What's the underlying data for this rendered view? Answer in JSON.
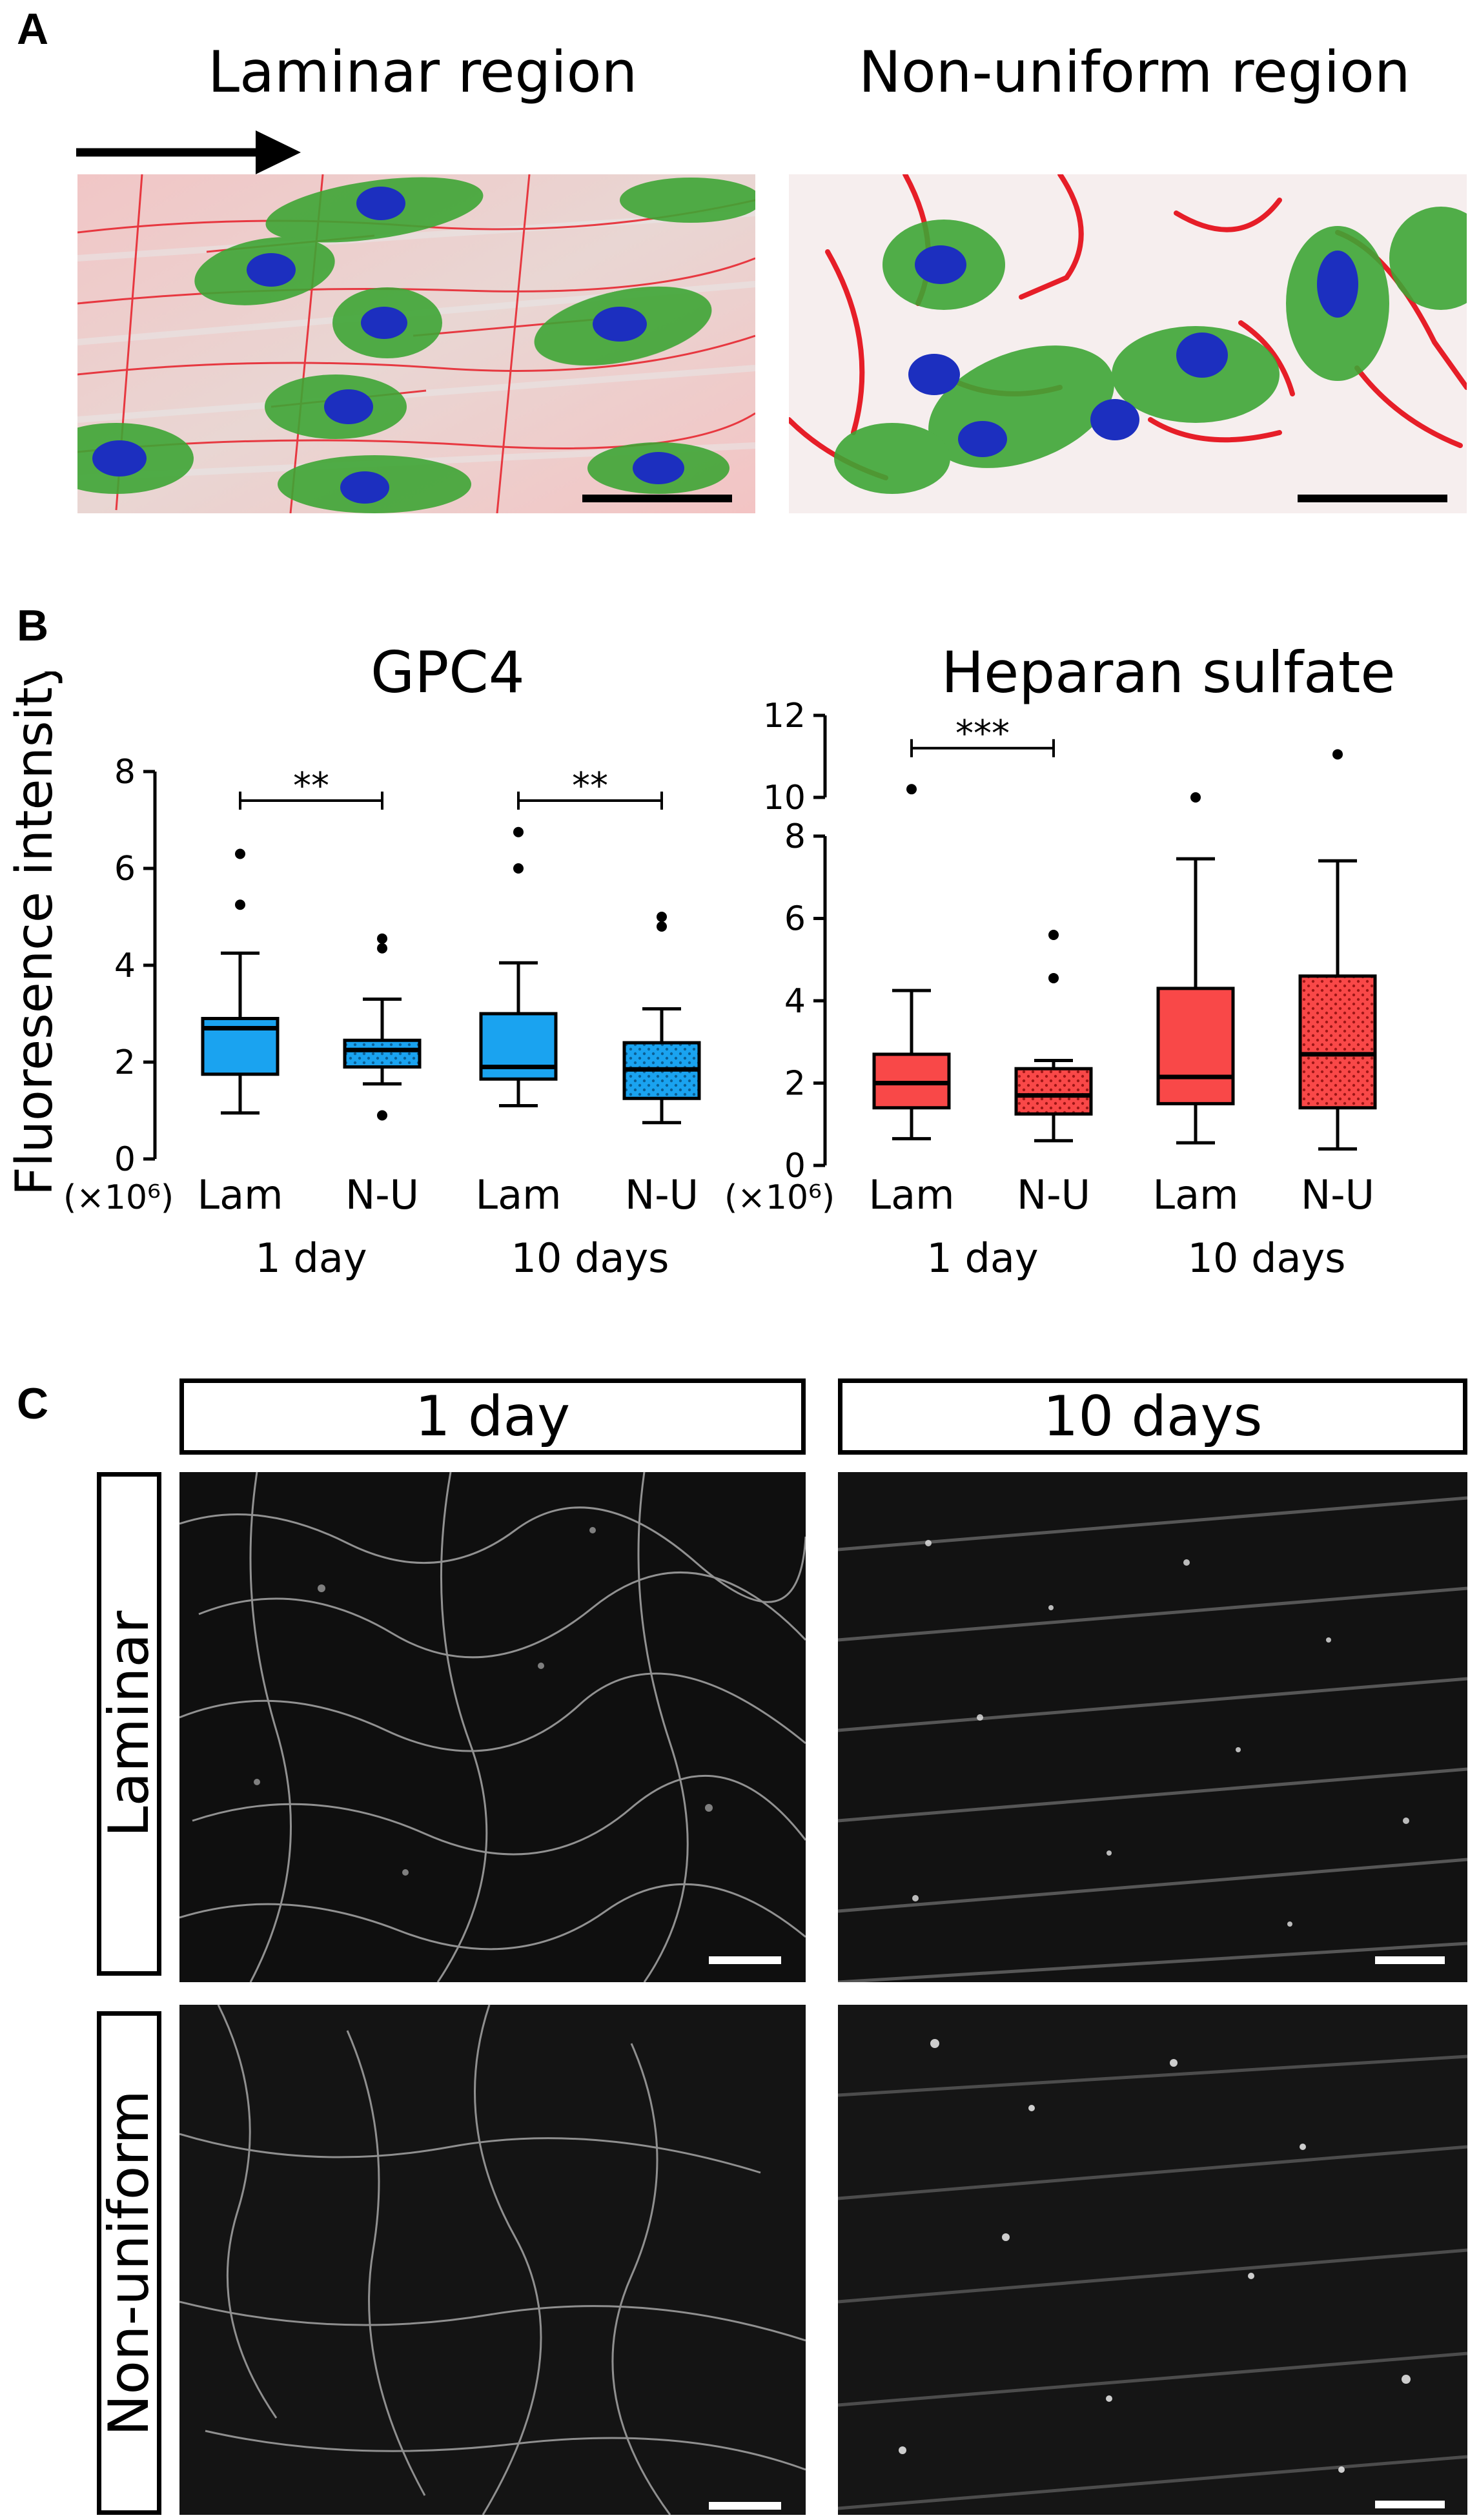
{
  "panels": {
    "a": "A",
    "b": "B",
    "c": "C"
  },
  "panel_a": {
    "left_title": "Laminar region",
    "right_title": "Non-uniform region"
  },
  "panel_b": {
    "ylabel": "Fluoresence intensity",
    "multiplier": "(×10⁶)"
  },
  "panel_c": {
    "col_1": "1 day",
    "col_2": "10 days",
    "row_1": "Laminar",
    "row_2": "Non-uniform"
  },
  "chart_data": [
    {
      "type": "box",
      "title": "GPC4",
      "ylabel": "Fluoresence intensity",
      "y_multiplier": "(×10⁶)",
      "ylim": [
        0,
        8
      ],
      "yticks": [
        0,
        2,
        4,
        6,
        8
      ],
      "color": "#1aa3f0",
      "categories": [
        "Lam",
        "N-U",
        "Lam",
        "N-U"
      ],
      "groups": [
        {
          "label": "1 day",
          "members": [
            0,
            1
          ]
        },
        {
          "label": "10 days",
          "members": [
            2,
            3
          ]
        }
      ],
      "boxes": [
        {
          "q1": 1.75,
          "median": 2.7,
          "q3": 2.9,
          "whisker_low": 0.95,
          "whisker_high": 4.25,
          "outliers": [
            5.25,
            6.3
          ],
          "pattern": false
        },
        {
          "q1": 1.9,
          "median": 2.25,
          "q3": 2.45,
          "whisker_low": 1.55,
          "whisker_high": 3.3,
          "outliers": [
            0.9,
            4.35,
            4.55
          ],
          "pattern": true
        },
        {
          "q1": 1.65,
          "median": 1.9,
          "q3": 3.0,
          "whisker_low": 1.1,
          "whisker_high": 4.05,
          "outliers": [
            6.0,
            6.75
          ],
          "pattern": false
        },
        {
          "q1": 1.25,
          "median": 1.85,
          "q3": 2.4,
          "whisker_low": 0.75,
          "whisker_high": 3.1,
          "outliers": [
            4.8,
            5.0
          ],
          "pattern": true
        }
      ],
      "significance": [
        {
          "from": 0,
          "to": 1,
          "y": 7.4,
          "label": "**"
        },
        {
          "from": 2,
          "to": 3,
          "y": 7.4,
          "label": "**"
        }
      ]
    },
    {
      "type": "box",
      "title": "Heparan sulfate",
      "y_multiplier": "(×10⁶)",
      "ylim": [
        0,
        12
      ],
      "axis_break": [
        8,
        10
      ],
      "yticks_lower": [
        0,
        2,
        4,
        6,
        8
      ],
      "yticks_upper": [
        10,
        12
      ],
      "color": "#f94848",
      "categories": [
        "Lam",
        "N-U",
        "Lam",
        "N-U"
      ],
      "groups": [
        {
          "label": "1 day",
          "members": [
            0,
            1
          ]
        },
        {
          "label": "10 days",
          "members": [
            2,
            3
          ]
        }
      ],
      "boxes": [
        {
          "q1": 1.4,
          "median": 2.0,
          "q3": 2.7,
          "whisker_low": 0.65,
          "whisker_high": 4.25,
          "outliers": [
            10.2
          ],
          "pattern": false
        },
        {
          "q1": 1.25,
          "median": 1.7,
          "q3": 2.35,
          "whisker_low": 0.6,
          "whisker_high": 2.55,
          "outliers": [
            4.55,
            5.6
          ],
          "pattern": true
        },
        {
          "q1": 1.5,
          "median": 2.15,
          "q3": 4.3,
          "whisker_low": 0.55,
          "whisker_high": 7.45,
          "outliers": [
            10.0
          ],
          "pattern": false
        },
        {
          "q1": 1.4,
          "median": 2.7,
          "q3": 4.6,
          "whisker_low": 0.4,
          "whisker_high": 7.4,
          "outliers": [
            11.05
          ],
          "pattern": true
        }
      ],
      "significance": [
        {
          "from": 0,
          "to": 1,
          "y": 11.2,
          "label": "***"
        }
      ]
    }
  ]
}
